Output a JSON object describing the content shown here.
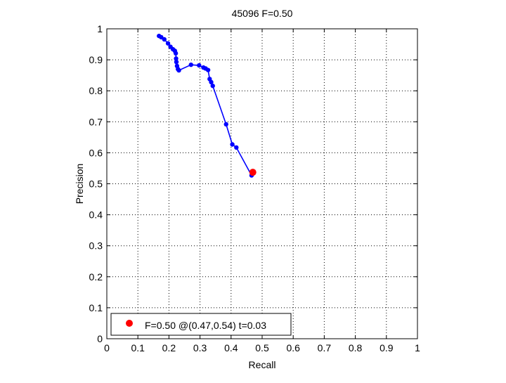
{
  "chart_data": {
    "type": "line",
    "title": "45096 F=0.50",
    "xlabel": "Recall",
    "ylabel": "Precision",
    "xlim": [
      0,
      1
    ],
    "ylim": [
      0,
      1
    ],
    "xticks": [
      "0",
      "0.1",
      "0.2",
      "0.3",
      "0.4",
      "0.5",
      "0.6",
      "0.7",
      "0.8",
      "0.9",
      "1"
    ],
    "yticks": [
      "0",
      "0.1",
      "0.2",
      "0.3",
      "0.4",
      "0.5",
      "0.6",
      "0.7",
      "0.8",
      "0.9",
      "1"
    ],
    "grid": true,
    "legend_position": "bottom-left",
    "series": [
      {
        "color": "#0000ff",
        "marker": "dot",
        "points": [
          [
            0.168,
            0.977
          ],
          [
            0.175,
            0.973
          ],
          [
            0.185,
            0.966
          ],
          [
            0.197,
            0.953
          ],
          [
            0.205,
            0.942
          ],
          [
            0.213,
            0.934
          ],
          [
            0.219,
            0.929
          ],
          [
            0.222,
            0.921
          ],
          [
            0.223,
            0.904
          ],
          [
            0.224,
            0.893
          ],
          [
            0.226,
            0.88
          ],
          [
            0.229,
            0.87
          ],
          [
            0.232,
            0.866
          ],
          [
            0.271,
            0.884
          ],
          [
            0.297,
            0.882
          ],
          [
            0.311,
            0.875
          ],
          [
            0.318,
            0.872
          ],
          [
            0.326,
            0.867
          ],
          [
            0.331,
            0.838
          ],
          [
            0.336,
            0.828
          ],
          [
            0.341,
            0.816
          ],
          [
            0.384,
            0.692
          ],
          [
            0.404,
            0.627
          ],
          [
            0.417,
            0.617
          ],
          [
            0.466,
            0.527
          ]
        ]
      }
    ],
    "best_point": {
      "recall": 0.47,
      "precision": 0.537,
      "color": "#ff0000",
      "legend": "F=0.50 @(0.47,0.54) t=0.03"
    }
  }
}
